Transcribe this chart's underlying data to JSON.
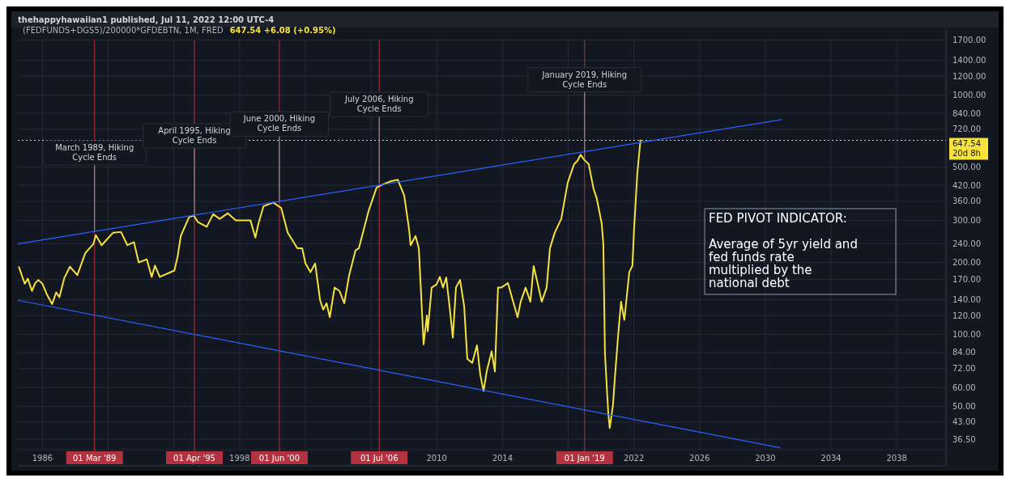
{
  "chart_data": {
    "type": "line",
    "title": "(FEDFUNDS+DGS5)/200000*GFDEBTN, 1M, FRED",
    "subtitle": "thehappyhawaiian1 published, Jul 11, 2022 12:00 UTC-4",
    "annotations": [
      "647.54  +6.08 (+0.95%)",
      "FED PIVOT INDICATOR:\n\nAverage of 5yr yield and\nfed funds rate\nmultiplied by the\nnational debt",
      {
        "text": "March 1989, Hiking Cycle Ends",
        "x": 1989.17,
        "y": 270
      },
      {
        "text": "April 1995, Hiking Cycle Ends",
        "x": 1995.25,
        "y": 318
      },
      {
        "text": "June 2000, Hiking Cycle Ends",
        "x": 2000.42,
        "y": 356
      },
      {
        "text": "July 2006, Hiking Cycle Ends",
        "x": 2006.5,
        "y": 430
      },
      {
        "text": "January 2019, Hiking Cycle Ends",
        "x": 2019.0,
        "y": 545
      }
    ],
    "series": [
      {
        "color": "#f5e23c",
        "x": [
          1984.57,
          1984.92,
          1985.11,
          1985.36,
          1985.56,
          1985.75,
          1986.0,
          1986.25,
          1986.59,
          1986.84,
          1987.03,
          1987.33,
          1987.67,
          1988.12,
          1988.61,
          1989.1,
          1989.25,
          1989.6,
          1990.29,
          1990.78,
          1991.17,
          1991.57,
          1991.86,
          1992.35,
          1992.65,
          1992.85,
          1993.14,
          1993.64,
          1994.03,
          1994.23,
          1994.42,
          1994.92,
          1995.21,
          1995.46,
          1996.0,
          1996.39,
          1996.79,
          1997.28,
          1997.77,
          1998.66,
          1998.96,
          1999.15,
          1999.45,
          2000.04,
          2000.53,
          2000.93,
          2001.52,
          2001.81,
          2002.01,
          2002.31,
          2002.6,
          2002.9,
          2003.09,
          2003.29,
          2003.49,
          2003.78,
          2004.08,
          2004.37,
          2004.67,
          2005.06,
          2005.26,
          2005.85,
          2006.34,
          2006.74,
          2007.23,
          2007.63,
          2008.02,
          2008.32,
          2008.41,
          2008.71,
          2008.91,
          2009.2,
          2009.4,
          2009.45,
          2009.69,
          2009.99,
          2010.19,
          2010.38,
          2010.58,
          2010.78,
          2010.98,
          2011.17,
          2011.42,
          2011.67,
          2011.86,
          2012.16,
          2012.45,
          2012.65,
          2012.85,
          2013.04,
          2013.34,
          2013.54,
          2013.73,
          2013.93,
          2014.33,
          2014.92,
          2015.11,
          2015.41,
          2015.7,
          2015.9,
          2016.2,
          2016.39,
          2016.69,
          2016.89,
          2017.18,
          2017.58,
          2017.97,
          2018.36,
          2018.56,
          2018.76,
          2018.96,
          2019.25,
          2019.55,
          2019.74,
          2020.04,
          2020.14,
          2020.24,
          2020.44,
          2020.53,
          2020.73,
          2020.83,
          2021.03,
          2021.22,
          2021.42,
          2021.72,
          2021.91,
          2022.01,
          2022.21,
          2022.4
        ],
        "values": [
          191,
          163,
          171,
          152,
          164,
          169,
          163,
          148,
          134,
          150,
          143,
          172,
          192,
          177,
          219,
          239,
          260,
          236,
          266,
          268,
          236,
          243,
          200,
          206,
          174,
          194,
          174,
          180,
          185,
          212,
          258,
          309,
          314,
          295,
          282,
          318,
          304,
          321,
          300,
          300,
          254,
          291,
          343,
          356,
          338,
          266,
          229,
          229,
          198,
          182,
          198,
          139,
          127,
          135,
          118,
          157,
          152,
          135,
          177,
          225,
          229,
          328,
          411,
          424,
          437,
          443,
          381,
          274,
          236,
          258,
          229,
          91,
          120,
          103,
          157,
          162,
          174,
          157,
          173,
          131,
          97,
          157,
          169,
          131,
          79,
          76,
          90,
          68,
          58,
          70,
          85,
          70,
          157,
          157,
          164,
          118,
          137,
          157,
          137,
          193,
          157,
          137,
          157,
          229,
          266,
          304,
          430,
          515,
          531,
          564,
          539,
          515,
          405,
          370,
          291,
          239,
          83,
          47,
          40.6,
          50.8,
          64,
          97,
          137,
          115,
          182,
          194,
          274,
          471,
          647.54
        ]
      },
      {
        "type": "line",
        "color": "#2962ff",
        "x": [
          1984.5,
          2031
        ],
        "values": [
          239,
          791
        ]
      },
      {
        "type": "line",
        "color": "#2962ff",
        "x": [
          1984.5,
          2030.9
        ],
        "values": [
          139,
          33.6
        ]
      }
    ],
    "xlim": [
      1984.5,
      2041
    ],
    "xticks": [
      1986,
      {
        "value": 1990,
        "label": null
      },
      {
        "value": 1994,
        "label": null
      },
      1998,
      {
        "value": 2002,
        "label": null
      },
      {
        "value": 2006,
        "label": null
      },
      2010,
      2014,
      {
        "value": 2018,
        "label": null
      },
      2022,
      2026,
      2030,
      2034,
      2038
    ],
    "log": true,
    "ylim": [
      33,
      1720
    ],
    "yticks": [
      {
        "value": 1700,
        "label": "1700.00"
      },
      {
        "value": 1400,
        "label": "1400.00"
      },
      {
        "value": 1200,
        "label": "1200.00"
      },
      {
        "value": 1000,
        "label": "1000.00"
      },
      {
        "value": 840,
        "label": "840.00"
      },
      {
        "value": 720,
        "label": "720.00"
      },
      {
        "value": 500,
        "label": "500.00"
      },
      {
        "value": 420,
        "label": "420.00"
      },
      {
        "value": 360,
        "label": "360.00"
      },
      {
        "value": 300,
        "label": "300.00"
      },
      {
        "value": 240,
        "label": "240.00"
      },
      {
        "value": 200,
        "label": "200.00"
      },
      {
        "value": 170,
        "label": "170.00"
      },
      {
        "value": 140,
        "label": "140.00"
      },
      {
        "value": 120,
        "label": "120.00"
      },
      {
        "value": 100,
        "label": "100.00"
      },
      {
        "value": 84,
        "label": "84.00"
      },
      {
        "value": 72,
        "label": "72.00"
      },
      {
        "value": 60,
        "label": "60.00"
      },
      {
        "value": 50,
        "label": "50.00"
      },
      {
        "value": 43,
        "label": "43.00"
      },
      {
        "value": 36.5,
        "label": "36.50"
      }
    ],
    "ref_lines": [
      {
        "axis": "x",
        "value": 1989.17,
        "label": "01 Mar '89",
        "color": "#b2323f"
      },
      {
        "axis": "x",
        "value": 1995.25,
        "label": "01 Apr '95",
        "color": "#b2323f"
      },
      {
        "axis": "x",
        "value": 2000.42,
        "label": "01 Jun '00",
        "color": "#b2323f"
      },
      {
        "axis": "x",
        "value": 2006.5,
        "label": "01 Jul '06",
        "color": "#b2323f"
      },
      {
        "axis": "x",
        "value": 2019.0,
        "label": "01 Jan '19",
        "color": "#b2323f"
      },
      {
        "axis": "y",
        "value": 647.54,
        "label": "647.54\n20d 8h",
        "color": "#f5e23c",
        "line_style": "dotted"
      }
    ],
    "grid": true,
    "marker": "none",
    "line_style": "solid"
  }
}
